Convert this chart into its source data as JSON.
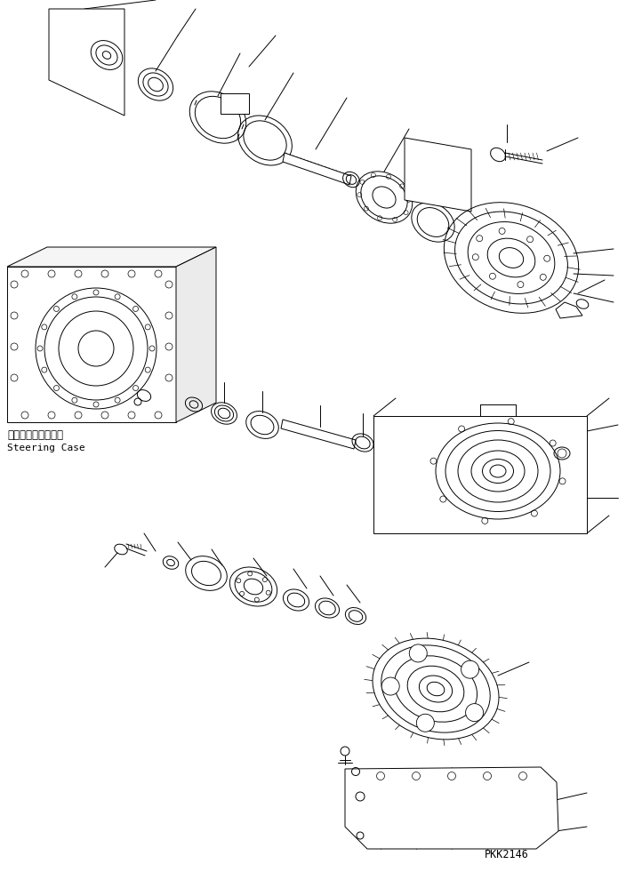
{
  "background_color": "#ffffff",
  "line_color": "#000000",
  "fig_width": 7.04,
  "fig_height": 9.81,
  "dpi": 100,
  "label_steering_jp": "ステアリングケース",
  "label_steering_en": "Steering Case",
  "watermark": "PKK2146",
  "lw": 0.7
}
